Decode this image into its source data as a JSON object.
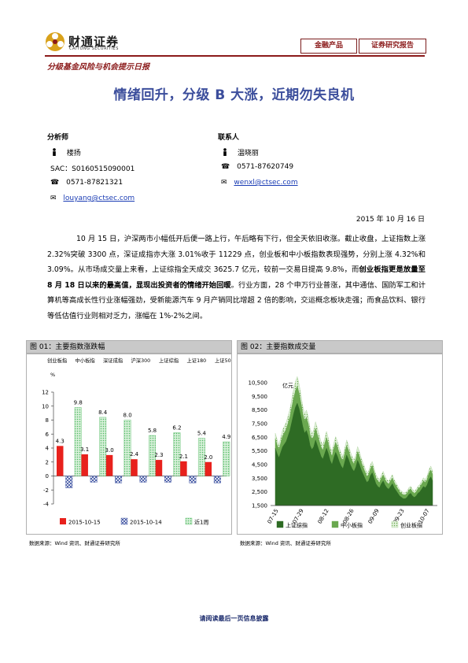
{
  "header": {
    "logo_cn": "财通证券",
    "logo_en": "CAITONG SECURITIES",
    "tag1": "金融产品",
    "tag2": "证券研究报告"
  },
  "subtitle": "分级基金风险与机会提示日报",
  "title": "情绪回升，分级 B 大涨，近期勿失良机",
  "contacts": {
    "analyst_label": "分析师",
    "analyst_name": "楼扬",
    "analyst_sac": "SAC：S0160515090001",
    "analyst_phone": "0571-87821321",
    "analyst_email": "louyang@ctsec.com",
    "contact_label": "联系人",
    "contact_name": "温晓丽",
    "contact_phone": "0571-87620749",
    "contact_email": "wenxl@ctsec.com"
  },
  "date": "2015 年 10 月 16 日",
  "paragraph": {
    "part1": "10 月 15 日，沪深两市小幅低开后便一路上行，午后略有下行，但全天依旧收涨。截止收盘，上证指数上涨 2.32%突破 3300 点，深证成指亦大涨 3.01%收于 11229 点，创业板和中小板指数表现强势，分别上涨 4.32%和 3.09%。从市场成交量上来看，上证综指全天成交 3625.7 亿元，较前一交易日提高 9.8%，而",
    "bold": "创业板指更是放量至 8 月 18 日以来的最高值，显现出投资者的情绪开始回暖",
    "part2": "。行业方面，28 个申万行业普涨，其中通信、国防军工和计算机等高成长性行业涨幅强劲，受新能源汽车 9 月产销同比增超 2 倍的影响，交运概念板块走强；而食品饮料、银行等低估值行业则相对乏力，涨幅在 1%-2%之间。"
  },
  "fig1": {
    "title": "图 01：主要指数涨跌幅",
    "source": "数据来源：Wind 资讯、财通证券研究所"
  },
  "fig2": {
    "title": "图 02：主要指数成交量",
    "source": "数据来源：Wind 资讯、财通证券研究所"
  },
  "footer": "请阅读最后一页信息披露",
  "chart_data": [
    {
      "type": "bar",
      "categories": [
        "创业板指",
        "中小板指",
        "深证成指",
        "沪深300",
        "上证综指",
        "上证180",
        "上证50"
      ],
      "ylabel": "%",
      "ylim": [
        -4,
        12
      ],
      "yticks": [
        -4,
        -2,
        0,
        2,
        4,
        6,
        8,
        10,
        12
      ],
      "series": [
        {
          "name": "2015-10-15",
          "values": [
            4.3,
            3.1,
            3.0,
            2.4,
            2.3,
            2.1,
            2.0
          ],
          "color": "#e8211c",
          "pattern": "solid"
        },
        {
          "name": "2015-10-14",
          "values": [
            -1.7,
            -0.9,
            -1.0,
            -0.9,
            -0.9,
            -1.0,
            -1.0
          ],
          "color": "#3a4fa0",
          "pattern": "crosshatch"
        },
        {
          "name": "近1周",
          "values": [
            9.8,
            8.4,
            8.0,
            5.8,
            6.2,
            5.4,
            4.9
          ],
          "color": "#55bb66",
          "pattern": "dots"
        }
      ],
      "labels_shown": {
        "2015-10-15": [
          "4.3",
          "3.1",
          "3.0",
          "2.4",
          "2.3",
          "2.1",
          "2.0"
        ],
        "近1周": [
          "9.8",
          "8.4",
          "8.0",
          "5.8",
          "6.2",
          "5.4",
          "4.9"
        ]
      },
      "legend": "bottom",
      "grid": false
    },
    {
      "type": "area",
      "ylabel": "亿元",
      "ylim": [
        1500,
        10500
      ],
      "yticks": [
        "1,500",
        "2,500",
        "3,500",
        "4,500",
        "5,500",
        "6,500",
        "7,500",
        "8,500",
        "9,500",
        "10,500"
      ],
      "xticks": [
        "07-15",
        "07-29",
        "08-12",
        "08-26",
        "09-09",
        "09-23",
        "10-07"
      ],
      "series": [
        {
          "name": "上证综指",
          "color": "#2e6b24",
          "values": [
            5700,
            5300,
            5000,
            5400,
            5800,
            6000,
            6200,
            6600,
            7000,
            7600,
            8200,
            8700,
            9000,
            8600,
            8000,
            7300,
            6800,
            7000,
            6600,
            5900,
            5600,
            5800,
            6300,
            5900,
            5500,
            5100,
            4900,
            5300,
            5700,
            5300,
            4800,
            4500,
            5000,
            5400,
            5100,
            4700,
            4400,
            4200,
            4700,
            5200,
            4900,
            4500,
            4200,
            4000,
            4300,
            4800,
            4500,
            4100,
            3800,
            3500,
            3200,
            3300,
            3700,
            3900,
            3500,
            3100,
            2900,
            2800,
            3100,
            3300,
            3000,
            2800,
            2700,
            2900,
            3100,
            2800,
            2600,
            2400,
            2200,
            2100,
            2000,
            2000,
            2100,
            2300,
            2400,
            2200,
            2100,
            2200,
            2400,
            2500,
            2700,
            2900,
            2800,
            3000,
            3400,
            3600,
            3300
          ]
        },
        {
          "name": "中小板指",
          "color": "#6aa84f",
          "values": [
            700,
            650,
            600,
            700,
            800,
            850,
            900,
            950,
            1000,
            1100,
            1150,
            1200,
            1250,
            1150,
            1050,
            950,
            900,
            950,
            900,
            800,
            750,
            780,
            850,
            800,
            750,
            700,
            650,
            720,
            780,
            720,
            650,
            600,
            680,
            730,
            690,
            640,
            600,
            580,
            640,
            700,
            660,
            610,
            570,
            540,
            580,
            650,
            610,
            560,
            520,
            480,
            440,
            450,
            500,
            530,
            480,
            430,
            400,
            380,
            420,
            450,
            410,
            380,
            370,
            400,
            420,
            380,
            360,
            330,
            300,
            290,
            280,
            280,
            290,
            320,
            330,
            300,
            290,
            300,
            330,
            340,
            370,
            400,
            390,
            410,
            470,
            500,
            460
          ]
        },
        {
          "name": "创业板指",
          "color": "#b6d7a8",
          "pattern": "dots",
          "values": [
            400,
            380,
            360,
            400,
            450,
            480,
            500,
            520,
            560,
            600,
            640,
            680,
            700,
            650,
            600,
            550,
            520,
            540,
            510,
            460,
            430,
            450,
            490,
            460,
            430,
            400,
            380,
            410,
            450,
            420,
            380,
            350,
            390,
            420,
            400,
            370,
            350,
            330,
            370,
            400,
            380,
            350,
            330,
            310,
            330,
            370,
            350,
            320,
            300,
            280,
            260,
            260,
            290,
            300,
            280,
            250,
            230,
            220,
            240,
            260,
            240,
            220,
            210,
            230,
            240,
            220,
            210,
            190,
            170,
            170,
            160,
            160,
            170,
            180,
            190,
            180,
            170,
            180,
            190,
            200,
            220,
            230,
            220,
            240,
            270,
            290,
            270
          ]
        }
      ],
      "legend": "bottom",
      "grid": false
    }
  ]
}
